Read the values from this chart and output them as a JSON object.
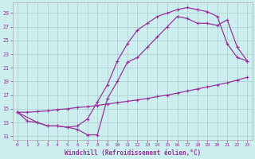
{
  "xlabel": "Windchill (Refroidissement éolien,°C)",
  "line_color": "#993399",
  "bg_color": "#cceeee",
  "xlim": [
    -0.5,
    23.5
  ],
  "ylim": [
    10.5,
    30.5
  ],
  "xticks": [
    0,
    1,
    2,
    3,
    4,
    5,
    6,
    7,
    8,
    9,
    10,
    11,
    12,
    13,
    14,
    15,
    16,
    17,
    18,
    19,
    20,
    21,
    22,
    23
  ],
  "yticks": [
    11,
    13,
    15,
    17,
    19,
    21,
    23,
    25,
    27,
    29
  ],
  "line1_x": [
    0,
    1,
    2,
    3,
    4,
    5,
    6,
    7,
    8,
    9,
    10,
    11,
    12,
    13,
    14,
    15,
    16,
    17,
    18,
    19,
    20,
    21,
    22,
    23
  ],
  "line1_y": [
    14.5,
    13.2,
    13.0,
    12.5,
    12.5,
    12.3,
    12.5,
    13.5,
    16.0,
    18.5,
    22.0,
    24.5,
    26.5,
    27.5,
    28.5,
    29.0,
    29.5,
    29.8,
    29.5,
    29.2,
    28.5,
    24.5,
    22.5,
    22.0
  ],
  "line2_x": [
    0,
    2,
    3,
    4,
    5,
    6,
    7,
    8,
    9,
    10,
    11,
    12,
    13,
    14,
    15,
    16,
    17,
    18,
    19,
    20,
    21,
    22,
    23
  ],
  "line2_y": [
    14.5,
    13.0,
    12.5,
    12.5,
    12.3,
    12.0,
    11.2,
    11.2,
    16.5,
    19.0,
    21.8,
    22.5,
    24.0,
    25.5,
    27.0,
    28.5,
    28.2,
    27.5,
    27.5,
    27.2,
    28.0,
    24.0,
    22.0
  ],
  "line3_x": [
    0,
    1,
    2,
    3,
    4,
    5,
    6,
    7,
    8,
    9,
    10,
    11,
    12,
    13,
    14,
    15,
    16,
    17,
    18,
    19,
    20,
    21,
    22,
    23
  ],
  "line3_y": [
    14.5,
    14.5,
    14.6,
    14.7,
    14.9,
    15.0,
    15.2,
    15.3,
    15.5,
    15.7,
    15.9,
    16.1,
    16.3,
    16.5,
    16.8,
    17.0,
    17.3,
    17.6,
    17.9,
    18.2,
    18.5,
    18.8,
    19.2,
    19.6
  ],
  "grid_color": "#aacccc"
}
